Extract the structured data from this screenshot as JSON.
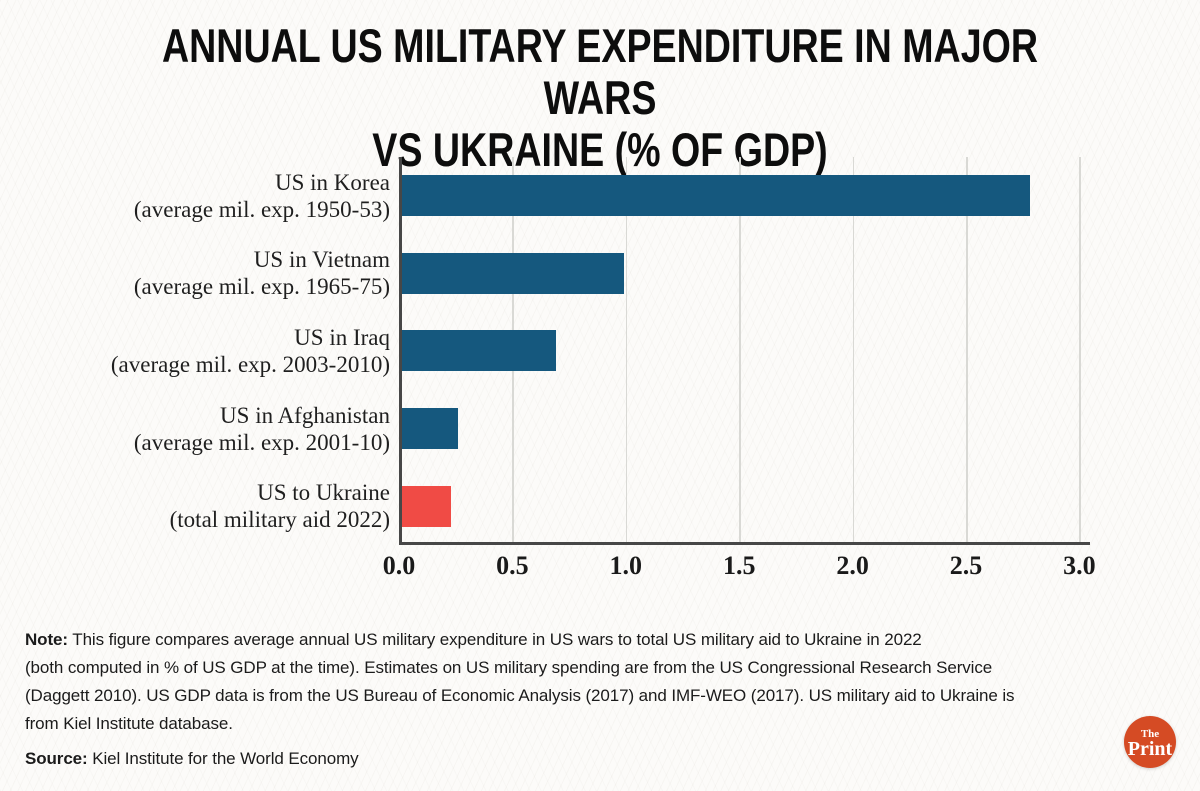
{
  "title": {
    "line1": "ANNUAL US MILITARY EXPENDITURE IN MAJOR WARS",
    "line2": "VS UKRAINE (% OF GDP)"
  },
  "chart_data": {
    "type": "bar",
    "orientation": "horizontal",
    "title": "Annual US military expenditure in major wars vs Ukraine (% of GDP)",
    "categories": [
      "US in Korea",
      "US in Vietnam",
      "US in Iraq",
      "US in Afghanistan",
      "US to Ukraine"
    ],
    "category_sublabels": [
      "(average mil. exp. 1950-53)",
      "(average mil. exp. 1965-75)",
      "(average mil. exp. 2003-2010)",
      "(average mil. exp. 2001-10)",
      "(total military aid 2022)"
    ],
    "values": [
      2.77,
      0.98,
      0.68,
      0.25,
      0.22
    ],
    "bar_colors": [
      "#15587e",
      "#15587e",
      "#15587e",
      "#15587e",
      "#f04b45"
    ],
    "xlim": [
      0,
      3.0
    ],
    "x_ticks": [
      0.0,
      0.5,
      1.0,
      1.5,
      2.0,
      2.5,
      3.0
    ],
    "x_tick_labels": [
      "0.0",
      "0.5",
      "1.0",
      "1.5",
      "2.0",
      "2.5",
      "3.0"
    ],
    "grid": "vertical-light-gray",
    "legend": false
  },
  "note": {
    "label": "Note:",
    "lines": [
      "This figure compares average annual US military expenditure in US wars to total US military aid to Ukraine in 2022",
      "(both computed in % of US GDP at the time). Estimates on US military spending are from the US Congressional Research Service",
      "(Daggett 2010). US GDP data is from the US Bureau of Economic Analysis (2017) and IMF-WEO (2017). US military aid to Ukraine is",
      "from Kiel Institute database."
    ]
  },
  "source": {
    "label": "Source:",
    "text": "Kiel Institute for the World Economy"
  },
  "logo": {
    "line1": "The",
    "line2": "Print",
    "color": "#d54b24"
  },
  "colors": {
    "bar_blue": "#15587e",
    "bar_red": "#f04b45",
    "axis": "#474747",
    "gridline": "#d9d9d5"
  }
}
